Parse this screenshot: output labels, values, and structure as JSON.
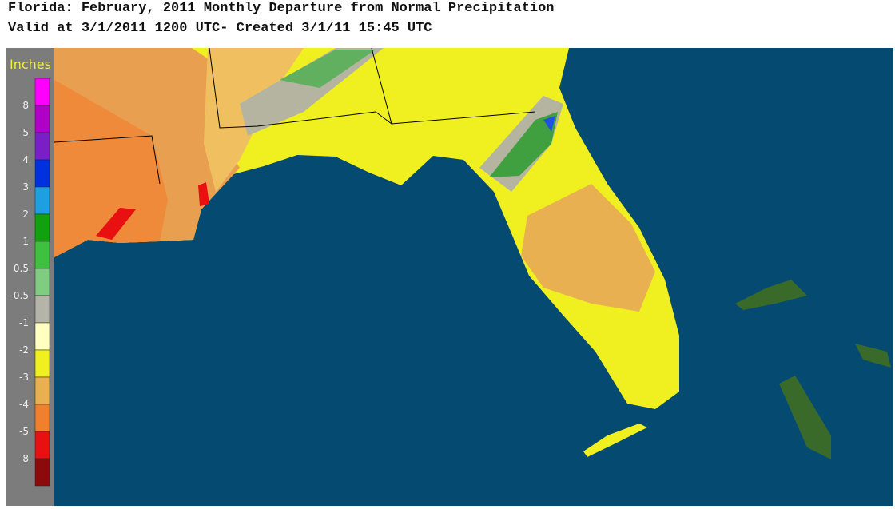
{
  "header": {
    "title": "Florida: February, 2011 Monthly Departure from Normal Precipitation",
    "subtitle": "Valid at 3/1/2011 1200 UTC- Created 3/1/11 15:45 UTC"
  },
  "legend": {
    "title": "Inches",
    "labels": [
      "8",
      "5",
      "4",
      "3",
      "2",
      "1",
      "0.5",
      "-0.5",
      "-1",
      "-2",
      "-3",
      "-4",
      "-5",
      "-8"
    ],
    "colors": [
      "#ff00ff",
      "#b000c8",
      "#7a1ec8",
      "#0030e0",
      "#1ea0e0",
      "#10a010",
      "#40c040",
      "#80cc80",
      "#b4b4a8",
      "#ffffc0",
      "#f0f020",
      "#e8b050",
      "#f08030",
      "#e81010",
      "#8c0a0a"
    ]
  }
}
